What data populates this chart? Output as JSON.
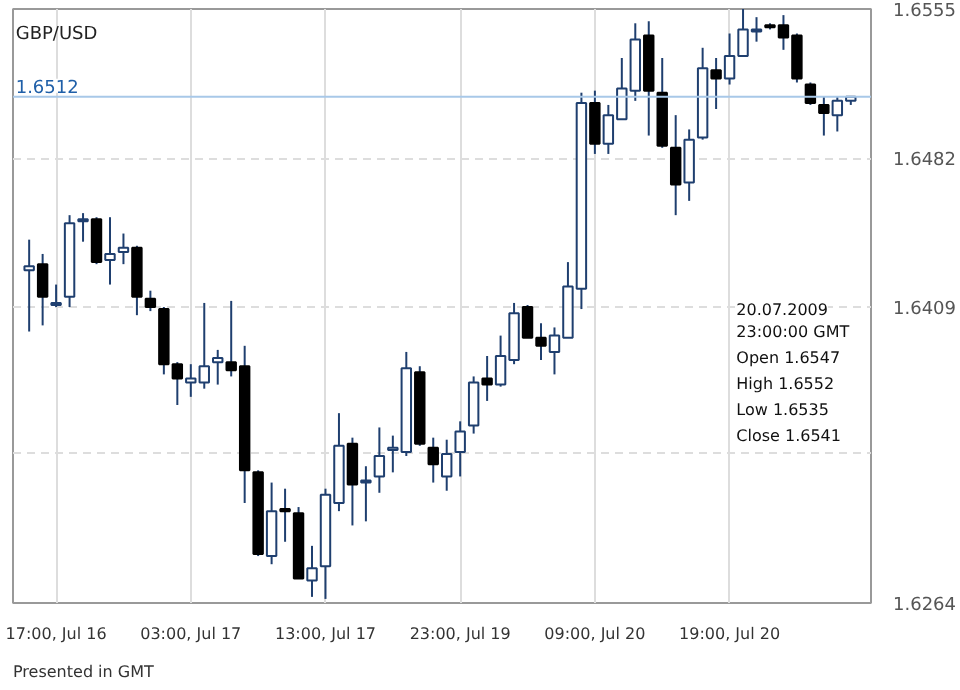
{
  "chart_data": {
    "type": "candlestick",
    "title": "GBP/USD",
    "categories": [
      null,
      null,
      "17:00, Jul 16",
      null,
      null,
      null,
      null,
      null,
      null,
      null,
      null,
      null,
      "03:00, Jul 17",
      null,
      null,
      null,
      null,
      null,
      null,
      null,
      null,
      null,
      "13:00, Jul 17",
      null,
      null,
      null,
      null,
      null,
      null,
      null,
      null,
      null,
      "23:00, Jul 19",
      null,
      null,
      null,
      null,
      null,
      null,
      null,
      null,
      null,
      "09:00, Jul 20",
      null,
      null,
      null,
      null,
      null,
      null,
      null,
      null,
      null,
      "19:00, Jul 20",
      null,
      null,
      null,
      null,
      null,
      null,
      null,
      null,
      null
    ],
    "ohlc": [
      [
        1.6427,
        1.6442,
        1.6397,
        1.6429
      ],
      [
        1.643,
        1.6435,
        1.64,
        1.6414
      ],
      [
        1.641,
        1.642,
        1.6409,
        1.6411
      ],
      [
        1.6414,
        1.6454,
        1.6409,
        1.645
      ],
      [
        1.6451,
        1.6455,
        1.6441,
        1.6452
      ],
      [
        1.6452,
        1.6453,
        1.643,
        1.6431
      ],
      [
        1.6432,
        1.6453,
        1.642,
        1.6435
      ],
      [
        1.6436,
        1.6445,
        1.643,
        1.6438
      ],
      [
        1.6438,
        1.6439,
        1.6405,
        1.6414
      ],
      [
        1.6413,
        1.6417,
        1.6407,
        1.6409
      ],
      [
        1.6408,
        1.6409,
        1.6376,
        1.6381
      ],
      [
        1.6381,
        1.6382,
        1.6361,
        1.6374
      ],
      [
        1.6372,
        1.6381,
        1.6365,
        1.6374
      ],
      [
        1.6372,
        1.6411,
        1.6369,
        1.638
      ],
      [
        1.6382,
        1.6388,
        1.6371,
        1.6384
      ],
      [
        1.6382,
        1.6412,
        1.6375,
        1.6378
      ],
      [
        1.638,
        1.639,
        1.6313,
        1.6329
      ],
      [
        1.6328,
        1.6329,
        1.6287,
        1.6288
      ],
      [
        1.6287,
        1.6323,
        1.6283,
        1.6309
      ],
      [
        1.631,
        1.632,
        1.6294,
        1.6309
      ],
      [
        1.6308,
        1.6311,
        1.6276,
        1.6276
      ],
      [
        1.6275,
        1.6292,
        1.6267,
        1.6281
      ],
      [
        1.6282,
        1.632,
        1.6266,
        1.6317
      ],
      [
        1.6313,
        1.6357,
        1.6309,
        1.6341
      ],
      [
        1.6342,
        1.6345,
        1.6302,
        1.6322
      ],
      [
        1.6323,
        1.6331,
        1.6304,
        1.6324
      ],
      [
        1.6326,
        1.635,
        1.6318,
        1.6336
      ],
      [
        1.6339,
        1.6346,
        1.6328,
        1.634
      ],
      [
        1.6338,
        1.6387,
        1.6336,
        1.6379
      ],
      [
        1.6377,
        1.638,
        1.6341,
        1.6342
      ],
      [
        1.634,
        1.6345,
        1.6323,
        1.6332
      ],
      [
        1.6326,
        1.6344,
        1.6319,
        1.6337
      ],
      [
        1.6338,
        1.6353,
        1.6326,
        1.6348
      ],
      [
        1.6351,
        1.6375,
        1.6347,
        1.6372
      ],
      [
        1.6374,
        1.6385,
        1.6363,
        1.6371
      ],
      [
        1.6371,
        1.6395,
        1.637,
        1.6385
      ],
      [
        1.6383,
        1.6411,
        1.6381,
        1.6406
      ],
      [
        1.6409,
        1.641,
        1.6394,
        1.6394
      ],
      [
        1.6394,
        1.6401,
        1.6383,
        1.639
      ],
      [
        1.6387,
        1.6399,
        1.6376,
        1.6395
      ],
      [
        1.6394,
        1.6431,
        1.6394,
        1.6419
      ],
      [
        1.6418,
        1.6514,
        1.6408,
        1.6509
      ],
      [
        1.6509,
        1.6515,
        1.6484,
        1.6489
      ],
      [
        1.6489,
        1.6508,
        1.6484,
        1.6503
      ],
      [
        1.6501,
        1.6531,
        1.6501,
        1.6516
      ],
      [
        1.6515,
        1.6548,
        1.651,
        1.654
      ],
      [
        1.6542,
        1.6549,
        1.6493,
        1.6515
      ],
      [
        1.6514,
        1.6531,
        1.6487,
        1.6488
      ],
      [
        1.6487,
        1.6503,
        1.6454,
        1.6469
      ],
      [
        1.647,
        1.6496,
        1.6461,
        1.6491
      ],
      [
        1.6492,
        1.6536,
        1.6491,
        1.6526
      ],
      [
        1.6525,
        1.6531,
        1.6506,
        1.6521
      ],
      [
        1.6521,
        1.6543,
        1.6518,
        1.6532
      ],
      [
        1.6532,
        1.6555,
        1.6532,
        1.6545
      ],
      [
        1.6544,
        1.6551,
        1.6539,
        1.6545
      ],
      [
        1.6547,
        1.6548,
        1.6545,
        1.6546
      ],
      [
        1.6547,
        1.6552,
        1.6535,
        1.6541
      ],
      [
        1.6542,
        1.6543,
        1.6519,
        1.6521
      ],
      [
        1.6518,
        1.6519,
        1.6508,
        1.6509
      ],
      [
        1.6508,
        1.6512,
        1.6493,
        1.6504
      ],
      [
        1.6503,
        1.6512,
        1.6495,
        1.651
      ],
      [
        1.651,
        1.6512,
        1.6508,
        1.6512
      ]
    ],
    "ylim": [
      1.6264,
      1.6555
    ],
    "yticks": [
      1.6264,
      {
        "value": 1.6337,
        "label": null
      },
      1.6409,
      1.6482,
      1.6555
    ],
    "grid": true,
    "ref_lines": [
      {
        "axis": "y",
        "value": 1.6512,
        "label": "1.6512",
        "color": "#a8c8e8"
      }
    ],
    "annotations": [
      "Presented in GMT",
      "20.07.2009",
      "23:00:00 GMT",
      "Open 1.6547",
      "High 1.6552",
      "Low 1.6535",
      "Close 1.6541"
    ]
  }
}
